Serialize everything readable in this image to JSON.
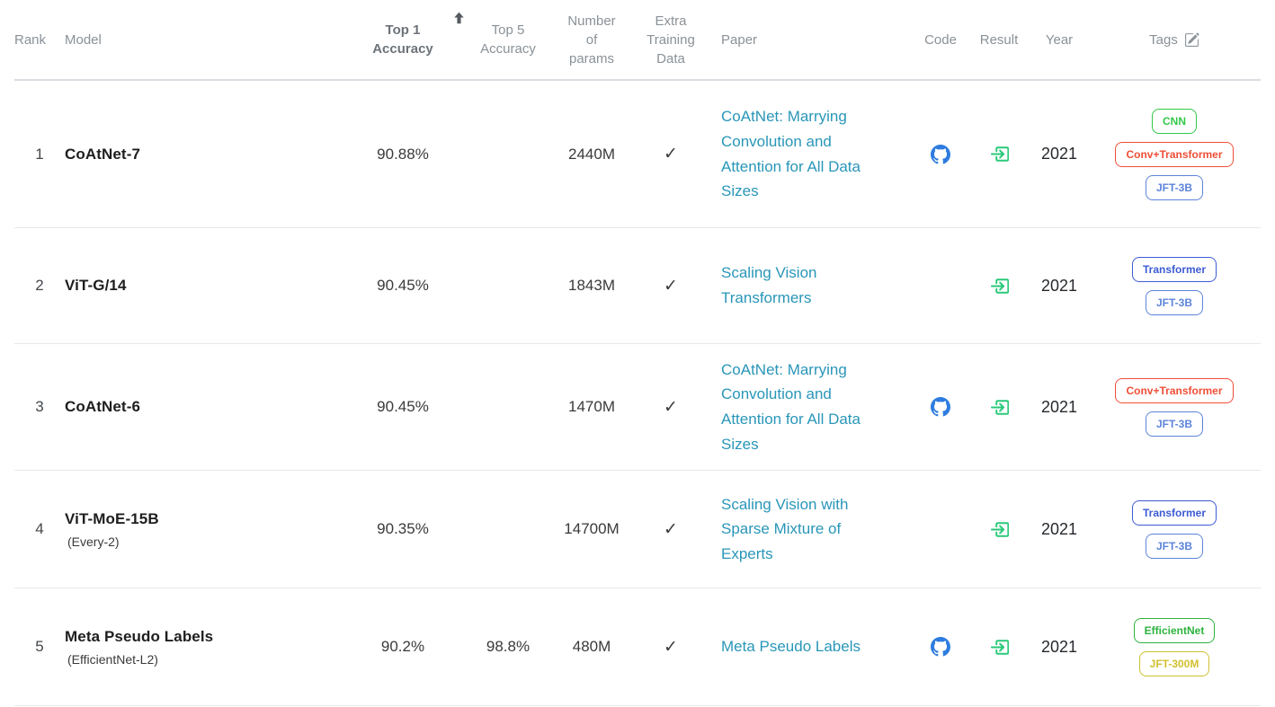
{
  "table": {
    "header": {
      "rank": "Rank",
      "model": "Model",
      "top1": "Top 1 Accuracy",
      "top5": "Top 5 Accuracy",
      "params": "Number of params",
      "extra": "Extra Training Data",
      "paper": "Paper",
      "code": "Code",
      "result": "Result",
      "year": "Year",
      "tags": "Tags",
      "sort_icon": "arrow-up-icon",
      "tags_edit_icon": "pencil-square-icon"
    },
    "rows": [
      {
        "rank": "1",
        "model": "CoAtNet-7",
        "model_note": "",
        "top1": "90.88%",
        "top5": "",
        "params": "2440M",
        "extra_training_data": true,
        "paper": "CoAtNet: Marrying Convolution and Attention for All Data Sizes",
        "has_code": true,
        "has_result": true,
        "year": "2021",
        "tags": [
          {
            "label": "CNN",
            "color": "#31c948"
          },
          {
            "label": "Conv+Transformer",
            "color": "#ef4f37"
          },
          {
            "label": "JFT-3B",
            "color": "#5c84d9"
          }
        ]
      },
      {
        "rank": "2",
        "model": "ViT-G/14",
        "model_note": "",
        "top1": "90.45%",
        "top5": "",
        "params": "1843M",
        "extra_training_data": true,
        "paper": "Scaling Vision Transformers",
        "has_code": false,
        "has_result": true,
        "year": "2021",
        "tags": [
          {
            "label": "Transformer",
            "color": "#3d5bd4"
          },
          {
            "label": "JFT-3B",
            "color": "#5c84d9"
          }
        ]
      },
      {
        "rank": "3",
        "model": "CoAtNet-6",
        "model_note": "",
        "top1": "90.45%",
        "top5": "",
        "params": "1470M",
        "extra_training_data": true,
        "paper": "CoAtNet: Marrying Convolution and Attention for All Data Sizes",
        "has_code": true,
        "has_result": true,
        "year": "2021",
        "tags": [
          {
            "label": "Conv+Transformer",
            "color": "#ef4f37"
          },
          {
            "label": "JFT-3B",
            "color": "#5c84d9"
          }
        ]
      },
      {
        "rank": "4",
        "model": "ViT-MoE-15B",
        "model_note": "(Every-2)",
        "top1": "90.35%",
        "top5": "",
        "params": "14700M",
        "extra_training_data": true,
        "paper": "Scaling Vision with Sparse Mixture of Experts",
        "has_code": false,
        "has_result": true,
        "year": "2021",
        "tags": [
          {
            "label": "Transformer",
            "color": "#3d5bd4"
          },
          {
            "label": "JFT-3B",
            "color": "#5c84d9"
          }
        ]
      },
      {
        "rank": "5",
        "model": "Meta Pseudo Labels",
        "model_note": "(EfficientNet-L2)",
        "top1": "90.2%",
        "top5": "98.8%",
        "params": "480M",
        "extra_training_data": true,
        "paper": "Meta Pseudo Labels",
        "has_code": true,
        "has_result": true,
        "year": "2021",
        "tags": [
          {
            "label": "EfficientNet",
            "color": "#2cb33e"
          },
          {
            "label": "JFT-300M",
            "color": "#d2c030"
          }
        ]
      }
    ],
    "icons": {
      "check_glyph": "✓"
    },
    "colors": {
      "paper_link": "#2996b8",
      "github_icon": "#2e7ce0",
      "result_icon": "#28c878",
      "check": "#3a3a3a",
      "sort_arrow": "#565b61",
      "header_text": "#8a9197",
      "header_sorted_text": "#6d737a"
    }
  }
}
